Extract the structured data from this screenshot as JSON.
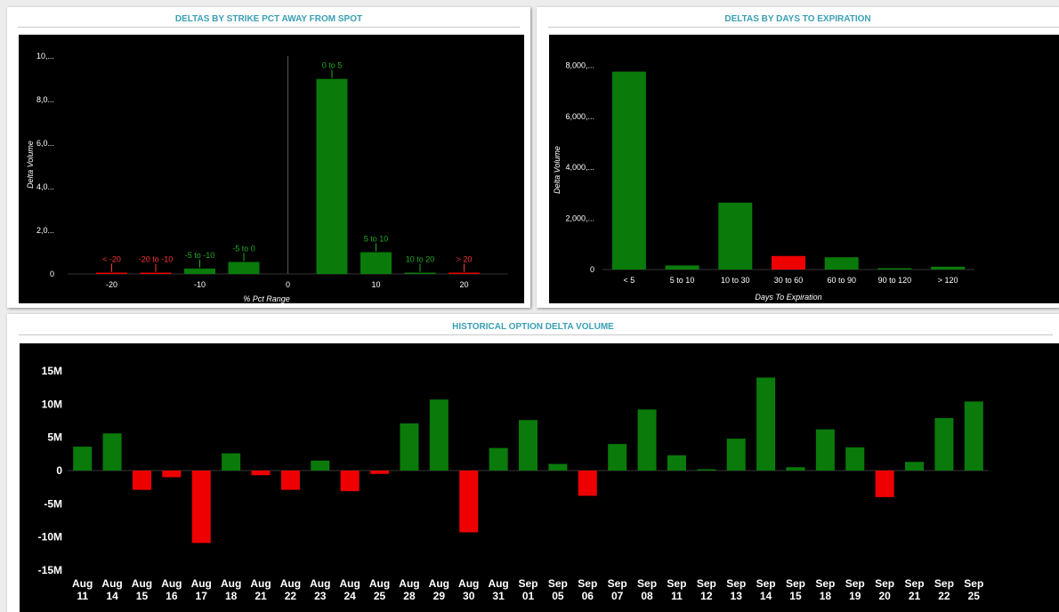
{
  "panels": {
    "strike": {
      "title": "DELTAS BY STRIKE PCT AWAY FROM SPOT"
    },
    "expiry": {
      "title": "DELTAS BY DAYS TO EXPIRATION"
    },
    "historical": {
      "title": "HISTORICAL OPTION DELTA VOLUME"
    }
  },
  "colors": {
    "positive": "#0a7a0a",
    "negative": "#ee0000",
    "positive_label": "#22aa22",
    "negative_label": "#ff3333",
    "background": "#000000",
    "title": "#3a9fb5"
  },
  "chart_data": [
    {
      "id": "strike",
      "type": "bar",
      "title": "DELTAS BY STRIKE PCT AWAY FROM SPOT",
      "xlabel": "% Pct Range",
      "ylabel": "Delta Volume",
      "xlim": [
        -25,
        25
      ],
      "ylim": [
        0,
        10000
      ],
      "xticks": [
        -20,
        -10,
        0,
        10,
        20
      ],
      "yticks": [
        0,
        2000,
        4000,
        6000,
        8000,
        10000
      ],
      "ytick_labels": [
        "0",
        "2,0...",
        "4,0...",
        "6,0...",
        "8,0...",
        "10,..."
      ],
      "bars": [
        {
          "label": "< -20",
          "x": -20,
          "value": 30,
          "sign": "negative"
        },
        {
          "label": "-20 to -10",
          "x": -15,
          "value": 20,
          "sign": "negative"
        },
        {
          "label": "-5 to -10",
          "x": -10,
          "value": 250,
          "sign": "positive"
        },
        {
          "label": "-5 to 0",
          "x": -5,
          "value": 550,
          "sign": "positive"
        },
        {
          "label": "0 to 5",
          "x": 5,
          "value": 8950,
          "sign": "positive"
        },
        {
          "label": "5 to 10",
          "x": 10,
          "value": 1000,
          "sign": "positive"
        },
        {
          "label": "10 to 20",
          "x": 15,
          "value": 15,
          "sign": "positive"
        },
        {
          "label": "> 20",
          "x": 20,
          "value": 25,
          "sign": "negative"
        }
      ],
      "grid": false
    },
    {
      "id": "expiry",
      "type": "bar",
      "title": "DELTAS BY DAYS TO EXPIRATION",
      "xlabel": "Days To Expiration",
      "ylabel": "Delta Volume",
      "ylim": [
        0,
        8500
      ],
      "yticks": [
        0,
        2000,
        4000,
        6000,
        8000
      ],
      "ytick_labels": [
        "0",
        "2,000,...",
        "4,000,...",
        "6,000,...",
        "8,000,..."
      ],
      "categories": [
        "< 5",
        "5 to 10",
        "10 to 30",
        "30 to 60",
        "60 to 90",
        "90 to 120",
        "> 120"
      ],
      "values": [
        7750,
        160,
        2620,
        530,
        480,
        20,
        110
      ],
      "signs": [
        "positive",
        "positive",
        "positive",
        "negative",
        "positive",
        "positive",
        "positive"
      ],
      "grid": false
    },
    {
      "id": "historical",
      "type": "bar",
      "title": "HISTORICAL OPTION DELTA VOLUME",
      "ylim": [
        -15000000,
        15000000
      ],
      "yticks": [
        -15000000,
        -10000000,
        -5000000,
        0,
        5000000,
        10000000,
        15000000
      ],
      "ytick_labels": [
        "-15M",
        "-10M",
        "-5M",
        "0",
        "5M",
        "10M",
        "15M"
      ],
      "categories": [
        [
          "Aug",
          "11"
        ],
        [
          "Aug",
          "14"
        ],
        [
          "Aug",
          "15"
        ],
        [
          "Aug",
          "16"
        ],
        [
          "Aug",
          "17"
        ],
        [
          "Aug",
          "18"
        ],
        [
          "Aug",
          "21"
        ],
        [
          "Aug",
          "22"
        ],
        [
          "Aug",
          "23"
        ],
        [
          "Aug",
          "24"
        ],
        [
          "Aug",
          "25"
        ],
        [
          "Aug",
          "28"
        ],
        [
          "Aug",
          "29"
        ],
        [
          "Aug",
          "30"
        ],
        [
          "Aug",
          "31"
        ],
        [
          "Sep",
          "01"
        ],
        [
          "Sep",
          "05"
        ],
        [
          "Sep",
          "06"
        ],
        [
          "Sep",
          "07"
        ],
        [
          "Sep",
          "08"
        ],
        [
          "Sep",
          "11"
        ],
        [
          "Sep",
          "12"
        ],
        [
          "Sep",
          "13"
        ],
        [
          "Sep",
          "14"
        ],
        [
          "Sep",
          "15"
        ],
        [
          "Sep",
          "18"
        ],
        [
          "Sep",
          "19"
        ],
        [
          "Sep",
          "20"
        ],
        [
          "Sep",
          "21"
        ],
        [
          "Sep",
          "22"
        ],
        [
          "Sep",
          "25"
        ]
      ],
      "values": [
        3600000,
        5600000,
        -2900000,
        -1000000,
        -10900000,
        2600000,
        -700000,
        -2900000,
        1500000,
        -3100000,
        -500000,
        7100000,
        10700000,
        -9300000,
        3400000,
        7600000,
        1000000,
        -3800000,
        4000000,
        9200000,
        2300000,
        200000,
        4800000,
        14000000,
        500000,
        6200000,
        3500000,
        -4000000,
        1300000,
        7900000,
        10400000
      ],
      "grid": false
    }
  ]
}
